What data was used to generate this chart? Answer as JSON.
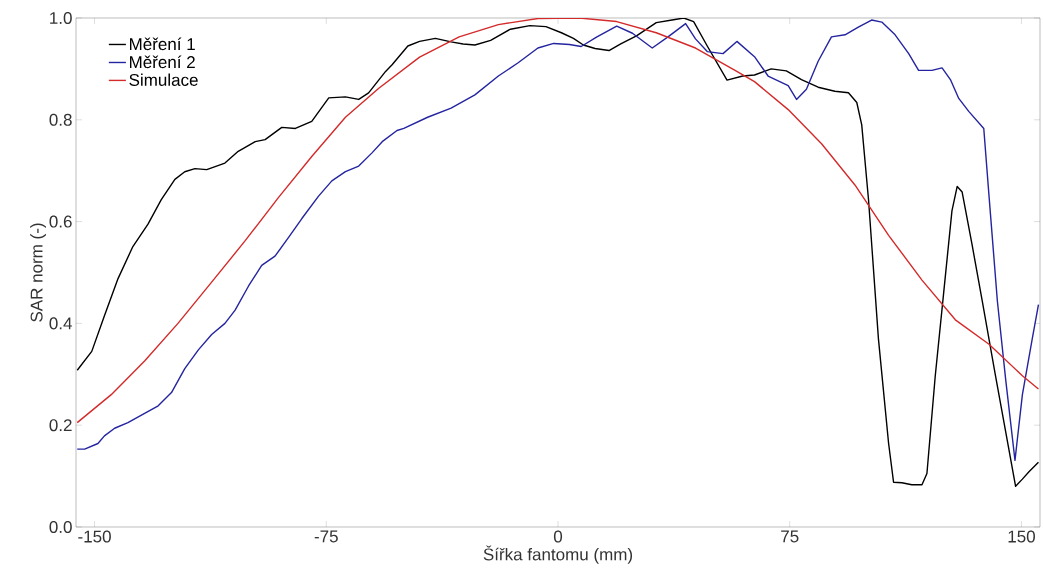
{
  "chart_data": {
    "type": "line",
    "xlabel": "Šířka fantomu (mm)",
    "ylabel": "SAR norm (-)",
    "xlim": [
      -156,
      156
    ],
    "ylim": [
      0,
      1
    ],
    "xticks": [
      -150,
      -75,
      0,
      75,
      150
    ],
    "yticks": [
      {
        "value": 0,
        "label": "0.0"
      },
      {
        "value": 0.2,
        "label": "0.2"
      },
      {
        "value": 0.4,
        "label": "0.4"
      },
      {
        "value": 0.6,
        "label": "0.6"
      },
      {
        "value": 0.8,
        "label": "0.8"
      },
      {
        "value": 1,
        "label": "1.0"
      }
    ],
    "grid": false,
    "legend": "top left",
    "line_style": "solid",
    "series": [
      {
        "name": "Měření 1",
        "color": "#000000",
        "x": [
          -155.6,
          -150.9,
          -146.8,
          -142.4,
          -137.6,
          -132.7,
          -128.4,
          -124,
          -120.8,
          -117.5,
          -113.7,
          -107.8,
          -103.5,
          -98,
          -94.8,
          -89.4,
          -85,
          -79.7,
          -74.2,
          -68.8,
          -64.5,
          -61.3,
          -55.8,
          -53.7,
          -48.6,
          -44.8,
          -39.7,
          -34.6,
          -30.7,
          -26.9,
          -21.8,
          -15.4,
          -9.1,
          -3.9,
          1.1,
          5,
          8.2,
          12,
          16.5,
          20.3,
          25.4,
          31.8,
          36.9,
          40.7,
          43.9,
          48.3,
          54.7,
          59.8,
          63.6,
          69,
          73.9,
          78.8,
          84.2,
          89.6,
          94,
          96.7,
          98.3,
          100.5,
          103.7,
          107,
          108.6,
          111.3,
          114.5,
          117.8,
          119.4,
          122.1,
          124.8,
          127.5,
          129.2,
          130.8,
          134,
          137.3,
          141.6,
          146,
          148.1,
          150.3,
          152.5,
          155.5
        ],
        "values": [
          0.308,
          0.345,
          0.415,
          0.488,
          0.551,
          0.595,
          0.643,
          0.683,
          0.698,
          0.704,
          0.702,
          0.715,
          0.738,
          0.757,
          0.761,
          0.785,
          0.783,
          0.797,
          0.843,
          0.845,
          0.84,
          0.853,
          0.895,
          0.908,
          0.945,
          0.954,
          0.96,
          0.953,
          0.949,
          0.947,
          0.956,
          0.978,
          0.985,
          0.983,
          0.971,
          0.96,
          0.947,
          0.94,
          0.936,
          0.949,
          0.965,
          0.991,
          0.996,
          1.0,
          0.993,
          0.945,
          0.878,
          0.886,
          0.888,
          0.9,
          0.896,
          0.879,
          0.864,
          0.856,
          0.853,
          0.834,
          0.79,
          0.643,
          0.37,
          0.164,
          0.088,
          0.087,
          0.083,
          0.083,
          0.105,
          0.297,
          0.459,
          0.621,
          0.669,
          0.658,
          0.555,
          0.444,
          0.297,
          0.15,
          0.08,
          0.094,
          0.109,
          0.127
        ]
      },
      {
        "name": "Měření 2",
        "color": "#2424a0",
        "x": [
          -155.6,
          -153.2,
          -148.9,
          -146.8,
          -143.5,
          -139.2,
          -133.8,
          -129.4,
          -125.1,
          -120.8,
          -116.4,
          -112.1,
          -107.8,
          -104.5,
          -100.2,
          -95.9,
          -91.6,
          -87.2,
          -82.9,
          -77.5,
          -73.2,
          -68.8,
          -64.5,
          -60.2,
          -56.9,
          -52.1,
          -49.9,
          -42.2,
          -34.6,
          -26.9,
          -19.3,
          -12.9,
          -6.5,
          -1.4,
          3.7,
          7.5,
          12.6,
          19,
          24.1,
          30.5,
          35.6,
          41.3,
          44.5,
          48.3,
          53.4,
          57.9,
          63.6,
          68,
          74.5,
          77.2,
          80.4,
          84.2,
          88.5,
          92.9,
          97.2,
          101.5,
          104.8,
          109.1,
          113.5,
          116.7,
          121,
          124.3,
          127,
          129.7,
          133,
          137.8,
          139.5,
          142.2,
          144.9,
          147.9,
          150.3,
          153.5,
          155.5
        ],
        "values": [
          0.153,
          0.153,
          0.164,
          0.179,
          0.194,
          0.205,
          0.223,
          0.238,
          0.264,
          0.311,
          0.348,
          0.378,
          0.4,
          0.426,
          0.473,
          0.514,
          0.532,
          0.569,
          0.606,
          0.65,
          0.68,
          0.698,
          0.709,
          0.735,
          0.757,
          0.779,
          0.783,
          0.805,
          0.823,
          0.849,
          0.886,
          0.912,
          0.941,
          0.95,
          0.948,
          0.944,
          0.963,
          0.984,
          0.97,
          0.941,
          0.963,
          0.989,
          0.959,
          0.934,
          0.93,
          0.954,
          0.924,
          0.886,
          0.867,
          0.84,
          0.86,
          0.915,
          0.963,
          0.967,
          0.982,
          0.996,
          0.992,
          0.967,
          0.93,
          0.897,
          0.897,
          0.902,
          0.879,
          0.842,
          0.816,
          0.783,
          0.65,
          0.444,
          0.289,
          0.131,
          0.26,
          0.37,
          0.437
        ]
      },
      {
        "name": "Simulace",
        "color": "#d42a2a",
        "x": [
          -155.6,
          -144.6,
          -133.8,
          -123,
          -112.1,
          -101.3,
          -90.5,
          -79.7,
          -68.8,
          -58,
          -44.8,
          -32,
          -19.3,
          -6.5,
          6.9,
          19,
          31.8,
          44.5,
          57.3,
          63.6,
          74.5,
          85.3,
          96.1,
          107,
          117.8,
          128.6,
          139.5,
          150.3,
          155.5
        ],
        "values": [
          0.205,
          0.26,
          0.326,
          0.4,
          0.481,
          0.562,
          0.647,
          0.728,
          0.805,
          0.862,
          0.923,
          0.963,
          0.987,
          0.999,
          1.0,
          0.993,
          0.971,
          0.941,
          0.897,
          0.875,
          0.82,
          0.753,
          0.672,
          0.573,
          0.485,
          0.407,
          0.359,
          0.297,
          0.271
        ]
      }
    ]
  }
}
